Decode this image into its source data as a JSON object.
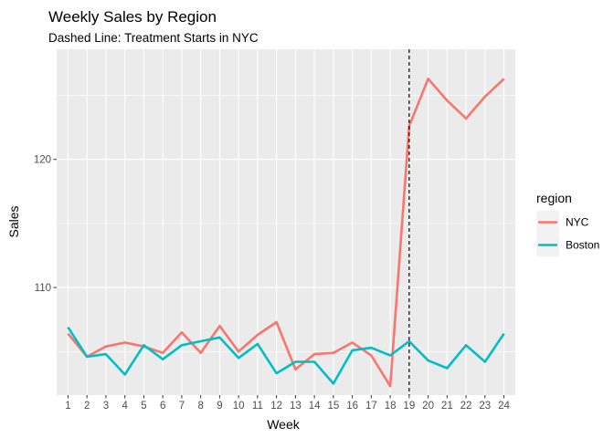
{
  "chart_data": {
    "type": "line",
    "title": "Weekly Sales by Region",
    "subtitle": "Dashed Line: Treatment Starts in NYC",
    "xlabel": "Week",
    "ylabel": "Sales",
    "x": [
      1,
      2,
      3,
      4,
      5,
      6,
      7,
      8,
      9,
      10,
      11,
      12,
      13,
      14,
      15,
      16,
      17,
      18,
      19,
      20,
      21,
      22,
      23,
      24
    ],
    "xlim": [
      0.4,
      24.6
    ],
    "ylim": [
      101.6,
      128.6
    ],
    "y_ticks": [
      110,
      120
    ],
    "grid": true,
    "legend": {
      "title": "region",
      "position": "right"
    },
    "vline": {
      "x": 19,
      "style": "dashed",
      "color": "#000000"
    },
    "series": [
      {
        "name": "NYC",
        "color": "#F8766D",
        "values": [
          106.4,
          104.6,
          105.4,
          105.7,
          105.4,
          104.9,
          106.5,
          104.9,
          107.0,
          105.0,
          106.3,
          107.3,
          103.6,
          104.8,
          104.9,
          105.7,
          104.7,
          102.3,
          122.6,
          126.3,
          124.6,
          123.2,
          124.9,
          126.3
        ]
      },
      {
        "name": "Boston",
        "color": "#00BFC4",
        "values": [
          106.9,
          104.6,
          104.8,
          103.2,
          105.5,
          104.4,
          105.5,
          105.8,
          106.1,
          104.5,
          105.6,
          103.3,
          104.2,
          104.2,
          102.5,
          105.1,
          105.3,
          104.7,
          105.8,
          104.3,
          103.7,
          105.5,
          104.2,
          106.4
        ]
      }
    ]
  }
}
